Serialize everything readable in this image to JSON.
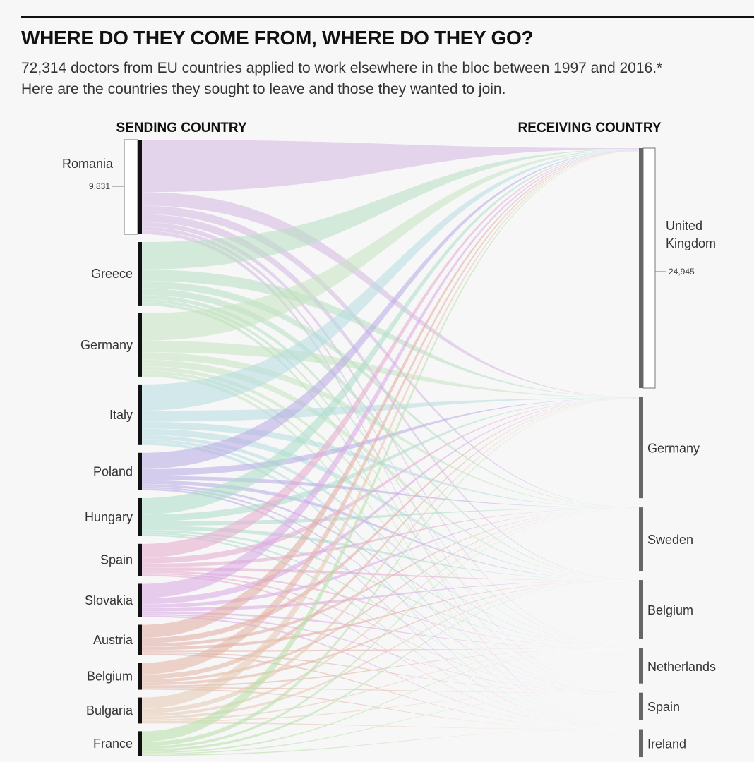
{
  "title": "WHERE DO THEY COME FROM, WHERE DO THEY GO?",
  "subtitle_line1": "72,314 doctors from EU countries applied to work elsewhere in the bloc between 1997 and 2016.*",
  "subtitle_line2": "Here are the countries they sought to leave and those they wanted to join.",
  "chart_data": {
    "type": "sankey",
    "left_header": "SENDING COUNTRY",
    "right_header": "RECEIVING COUNTRY",
    "sources": [
      {
        "name": "Romania",
        "value": 9831,
        "value_label": "9,831",
        "color": "#d6b8e2"
      },
      {
        "name": "Greece",
        "value": 6600,
        "color": "#b7dfc2"
      },
      {
        "name": "Germany",
        "value": 6600,
        "color": "#c4e4bf"
      },
      {
        "name": "Italy",
        "value": 6300,
        "color": "#b4dde0"
      },
      {
        "name": "Poland",
        "value": 3900,
        "color": "#b8a9e6"
      },
      {
        "name": "Hungary",
        "value": 3950,
        "color": "#acdcc8"
      },
      {
        "name": "Spain",
        "value": 3350,
        "color": "#e6aacd"
      },
      {
        "name": "Slovakia",
        "value": 3450,
        "color": "#d8a8e6"
      },
      {
        "name": "Austria",
        "value": 3150,
        "color": "#e2aca2"
      },
      {
        "name": "Belgium",
        "value": 2800,
        "color": "#e2b2a2"
      },
      {
        "name": "Bulgaria",
        "value": 2700,
        "color": "#e6c8b2"
      },
      {
        "name": "France",
        "value": 2550,
        "color": "#b4e0a6"
      }
    ],
    "targets": [
      {
        "name": "United Kingdom",
        "line1": "United",
        "line2": "Kingdom",
        "value": 24945,
        "value_label": "24,945"
      },
      {
        "name": "Germany",
        "value": 10500
      },
      {
        "name": "Sweden",
        "value": 6600
      },
      {
        "name": "Belgium",
        "value": 6150
      },
      {
        "name": "Netherlands",
        "value": 3650
      },
      {
        "name": "Spain",
        "value": 2850
      },
      {
        "name": "Ireland",
        "value": 2900
      }
    ]
  }
}
